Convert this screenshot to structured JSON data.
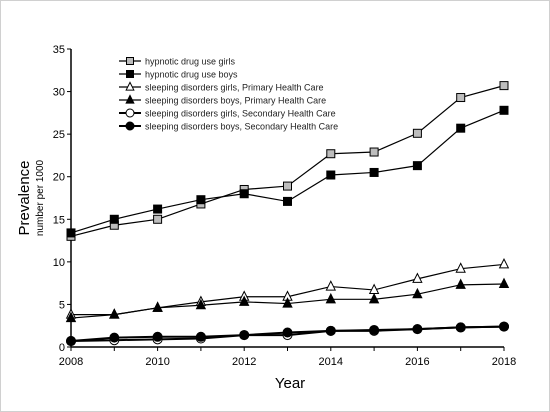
{
  "chart_data": {
    "type": "line",
    "title": "",
    "xlabel": "Year",
    "ylabel": "Prevalence",
    "ylabel_sub": "number per 1000",
    "xlim": [
      2008,
      2018
    ],
    "ylim": [
      0,
      35
    ],
    "x_ticks": [
      2008,
      2010,
      2012,
      2014,
      2016,
      2018
    ],
    "y_ticks": [
      0,
      5,
      10,
      15,
      20,
      25,
      30,
      35
    ],
    "grid": false,
    "legend_position": "top-left",
    "x": [
      2008,
      2009,
      2010,
      2011,
      2012,
      2013,
      2014,
      2015,
      2016,
      2017,
      2018
    ],
    "series": [
      {
        "name": "hypnotic drug use girls",
        "marker": "square-open",
        "values": [
          13.0,
          14.3,
          15.0,
          16.8,
          18.5,
          18.9,
          22.7,
          22.9,
          25.1,
          29.3,
          30.7
        ]
      },
      {
        "name": "hypnotic drug use boys",
        "marker": "square-filled",
        "values": [
          13.4,
          15.0,
          16.2,
          17.3,
          18.0,
          17.1,
          20.2,
          20.5,
          21.3,
          25.7,
          27.8
        ]
      },
      {
        "name": "sleeping disorders girls, Primary Health Care",
        "marker": "triangle-open",
        "values": [
          3.8,
          3.8,
          4.6,
          5.3,
          5.9,
          5.9,
          7.1,
          6.7,
          8.0,
          9.2,
          9.7
        ]
      },
      {
        "name": "sleeping disorders boys, Primary Health Care",
        "marker": "triangle-filled",
        "values": [
          3.4,
          3.8,
          4.6,
          4.9,
          5.3,
          5.1,
          5.6,
          5.6,
          6.2,
          7.3,
          7.4
        ]
      },
      {
        "name": "sleeping disorders girls, Secondary Health Care",
        "marker": "circle-open",
        "values": [
          0.7,
          0.8,
          0.9,
          1.0,
          1.4,
          1.4,
          1.9,
          1.9,
          2.1,
          2.3,
          2.4
        ]
      },
      {
        "name": "sleeping disorders boys, Secondary Health Care",
        "marker": "circle-filled",
        "values": [
          0.7,
          1.1,
          1.2,
          1.2,
          1.4,
          1.7,
          1.9,
          2.0,
          2.1,
          2.3,
          2.4
        ]
      }
    ]
  }
}
